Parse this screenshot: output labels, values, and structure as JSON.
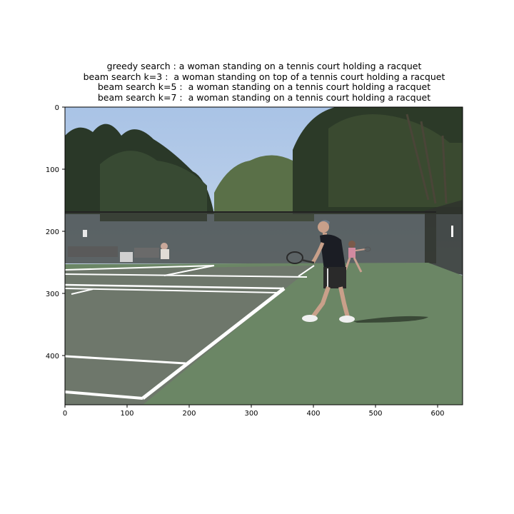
{
  "figure": {
    "titles": [
      "greedy search : a woman standing on a tennis court holding a racquet",
      "beam search k=3 :  a woman standing on top of a tennis court holding a racquet",
      "beam search k=5 :  a woman standing on a tennis court holding a racquet",
      "beam search k=7 :  a woman standing on a tennis court holding a racquet"
    ],
    "x_ticks": [
      "0",
      "100",
      "200",
      "300",
      "400",
      "500",
      "600"
    ],
    "y_ticks": [
      "0",
      "100",
      "200",
      "300",
      "400"
    ]
  },
  "photo": {
    "subject": "tennis court with man holding racquet, trees and fence in background",
    "colors": {
      "sky": "#b7cde8",
      "court": "#6d8766",
      "court_inner": "#707a6e",
      "trees": "#2f3d2c",
      "fence": "#3a3d38",
      "lines": "#ffffff",
      "player_shirt": "#1b1d24"
    }
  }
}
